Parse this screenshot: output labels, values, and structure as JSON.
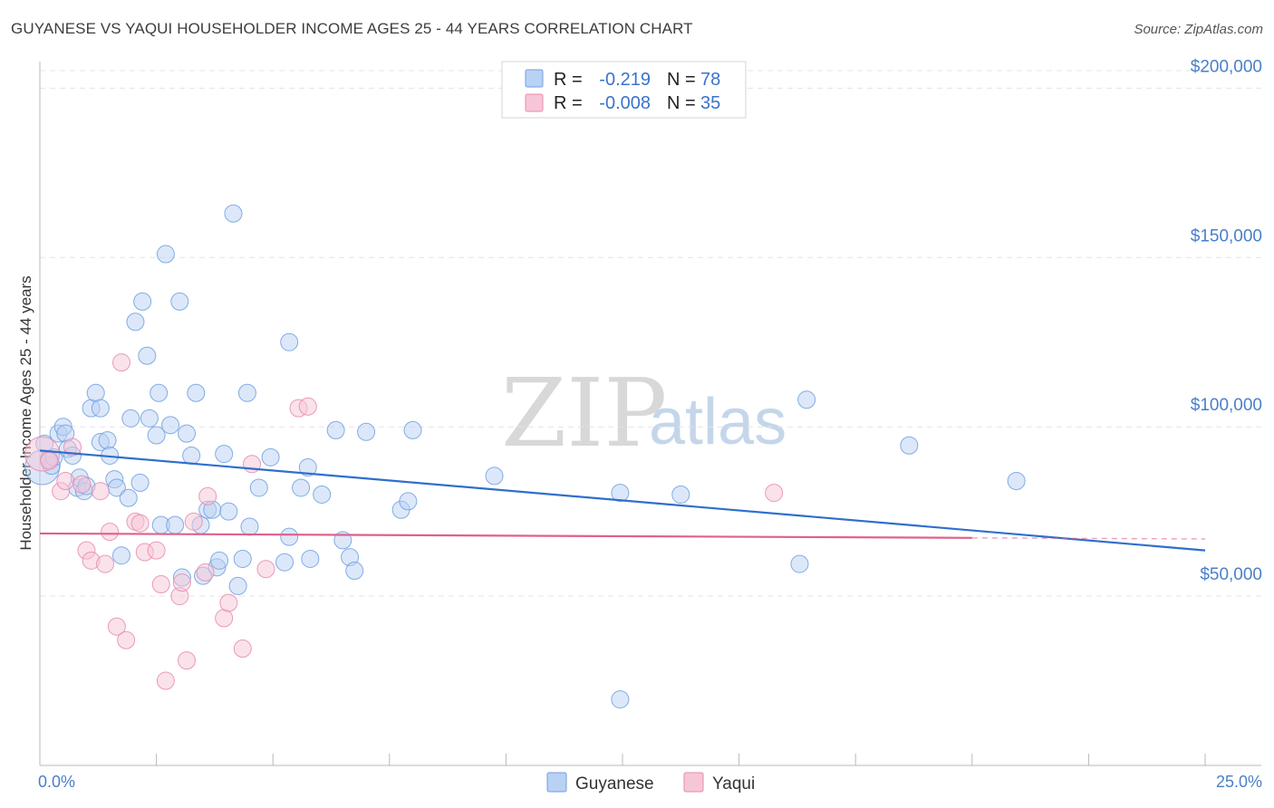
{
  "header": {
    "title": "GUYANESE VS YAQUI HOUSEHOLDER INCOME AGES 25 - 44 YEARS CORRELATION CHART",
    "source": "Source: ZipAtlas.com"
  },
  "watermark": {
    "part1": "ZIP",
    "part2": "atlas"
  },
  "colors": {
    "blue": "#6f9fe0",
    "blue_line": "#2f6fcc",
    "blue_fill": "#b9d1f3",
    "pink": "#e88aad",
    "pink_line": "#e0608a",
    "pink_fill": "#f6c6d7",
    "axis_label": "#4a7fc8",
    "grid": "#e4e4e4"
  },
  "legend": {
    "rows": [
      {
        "r_label": "R =",
        "r_value": "-0.219",
        "n_label": "N =",
        "n_value": "78",
        "color": "#b9d1f3",
        "stroke": "#6f9fe0"
      },
      {
        "r_label": "R =",
        "r_value": "-0.008",
        "n_label": "N =",
        "n_value": "35",
        "color": "#f6c6d7",
        "stroke": "#e88aad"
      }
    ]
  },
  "bottom_legend": [
    {
      "label": "Guyanese",
      "color": "#b9d1f3",
      "stroke": "#6f9fe0"
    },
    {
      "label": "Yaqui",
      "color": "#f6c6d7",
      "stroke": "#e88aad"
    }
  ],
  "chart_data": {
    "type": "scatter",
    "title": "GUYANESE VS YAQUI HOUSEHOLDER INCOME AGES 25 - 44 YEARS CORRELATION CHART",
    "xlabel": "",
    "ylabel": "Householder Income Ages 25 - 44 years",
    "xlim": [
      0,
      25
    ],
    "ylim": [
      0,
      210000
    ],
    "x_tick_labels": [
      "0.0%",
      "25.0%"
    ],
    "y_ticks": [
      50000,
      100000,
      150000,
      200000
    ],
    "y_tick_labels": [
      "$50,000",
      "$100,000",
      "$150,000",
      "$200,000"
    ],
    "grid": true,
    "series": [
      {
        "name": "Guyanese",
        "r": -0.219,
        "n": 78,
        "trend": {
          "x": [
            0,
            25
          ],
          "y": [
            93000,
            63500
          ]
        },
        "points": [
          {
            "x": 0.05,
            "y": 88000,
            "big": true
          },
          {
            "x": 0.1,
            "y": 95000
          },
          {
            "x": 0.2,
            "y": 90500
          },
          {
            "x": 0.25,
            "y": 88500
          },
          {
            "x": 0.3,
            "y": 91000
          },
          {
            "x": 0.4,
            "y": 98000
          },
          {
            "x": 0.5,
            "y": 100000
          },
          {
            "x": 0.55,
            "y": 98000
          },
          {
            "x": 0.6,
            "y": 93500
          },
          {
            "x": 0.7,
            "y": 91500
          },
          {
            "x": 0.8,
            "y": 82000
          },
          {
            "x": 0.85,
            "y": 85000
          },
          {
            "x": 0.95,
            "y": 81000
          },
          {
            "x": 1.0,
            "y": 82500
          },
          {
            "x": 1.1,
            "y": 105500
          },
          {
            "x": 1.2,
            "y": 110000
          },
          {
            "x": 1.3,
            "y": 105500
          },
          {
            "x": 1.3,
            "y": 95500
          },
          {
            "x": 1.45,
            "y": 96000
          },
          {
            "x": 1.5,
            "y": 91500
          },
          {
            "x": 1.6,
            "y": 84500
          },
          {
            "x": 1.65,
            "y": 82000
          },
          {
            "x": 1.75,
            "y": 62000
          },
          {
            "x": 1.9,
            "y": 79000
          },
          {
            "x": 1.95,
            "y": 102500
          },
          {
            "x": 2.05,
            "y": 131000
          },
          {
            "x": 2.15,
            "y": 83500
          },
          {
            "x": 2.2,
            "y": 137000
          },
          {
            "x": 2.3,
            "y": 121000
          },
          {
            "x": 2.35,
            "y": 102500
          },
          {
            "x": 2.5,
            "y": 97500
          },
          {
            "x": 2.55,
            "y": 110000
          },
          {
            "x": 2.6,
            "y": 71000
          },
          {
            "x": 2.7,
            "y": 151000
          },
          {
            "x": 2.8,
            "y": 100500
          },
          {
            "x": 2.9,
            "y": 71000
          },
          {
            "x": 3.0,
            "y": 137000
          },
          {
            "x": 3.05,
            "y": 55500
          },
          {
            "x": 3.15,
            "y": 98000
          },
          {
            "x": 3.25,
            "y": 91500
          },
          {
            "x": 3.35,
            "y": 110000
          },
          {
            "x": 3.45,
            "y": 71000
          },
          {
            "x": 3.5,
            "y": 56000
          },
          {
            "x": 3.6,
            "y": 75500
          },
          {
            "x": 3.7,
            "y": 75500
          },
          {
            "x": 3.8,
            "y": 58500
          },
          {
            "x": 3.85,
            "y": 60500
          },
          {
            "x": 3.95,
            "y": 92000
          },
          {
            "x": 4.05,
            "y": 75000
          },
          {
            "x": 4.15,
            "y": 163000
          },
          {
            "x": 4.25,
            "y": 53000
          },
          {
            "x": 4.35,
            "y": 61000
          },
          {
            "x": 4.45,
            "y": 110000
          },
          {
            "x": 4.5,
            "y": 70500
          },
          {
            "x": 4.7,
            "y": 82000
          },
          {
            "x": 4.95,
            "y": 91000
          },
          {
            "x": 5.25,
            "y": 60000
          },
          {
            "x": 5.35,
            "y": 67500
          },
          {
            "x": 5.35,
            "y": 125000
          },
          {
            "x": 5.6,
            "y": 82000
          },
          {
            "x": 5.75,
            "y": 88000
          },
          {
            "x": 5.8,
            "y": 61000
          },
          {
            "x": 6.05,
            "y": 80000
          },
          {
            "x": 6.35,
            "y": 99000
          },
          {
            "x": 6.5,
            "y": 66500
          },
          {
            "x": 6.65,
            "y": 61500
          },
          {
            "x": 6.75,
            "y": 57500
          },
          {
            "x": 7.0,
            "y": 98500
          },
          {
            "x": 7.75,
            "y": 75500
          },
          {
            "x": 7.9,
            "y": 78000
          },
          {
            "x": 8.0,
            "y": 99000
          },
          {
            "x": 9.75,
            "y": 85500
          },
          {
            "x": 12.45,
            "y": 19500
          },
          {
            "x": 12.45,
            "y": 80500
          },
          {
            "x": 13.75,
            "y": 80000
          },
          {
            "x": 16.3,
            "y": 59500
          },
          {
            "x": 16.45,
            "y": 108000
          },
          {
            "x": 18.65,
            "y": 94500
          },
          {
            "x": 20.95,
            "y": 84000
          }
        ]
      },
      {
        "name": "Yaqui",
        "r": -0.008,
        "n": 35,
        "trend": {
          "x": [
            0,
            20
          ],
          "y": [
            68500,
            67200
          ],
          "dashed_to": 25
        },
        "points": [
          {
            "x": 0.05,
            "y": 92000,
            "big": true
          },
          {
            "x": 0.2,
            "y": 90000
          },
          {
            "x": 0.45,
            "y": 81000
          },
          {
            "x": 0.55,
            "y": 84000
          },
          {
            "x": 0.7,
            "y": 94000
          },
          {
            "x": 0.9,
            "y": 83000
          },
          {
            "x": 1.0,
            "y": 63500
          },
          {
            "x": 1.1,
            "y": 60500
          },
          {
            "x": 1.3,
            "y": 81000
          },
          {
            "x": 1.4,
            "y": 59500
          },
          {
            "x": 1.5,
            "y": 69000
          },
          {
            "x": 1.65,
            "y": 41000
          },
          {
            "x": 1.75,
            "y": 119000
          },
          {
            "x": 1.85,
            "y": 37000
          },
          {
            "x": 2.05,
            "y": 72000
          },
          {
            "x": 2.15,
            "y": 71500
          },
          {
            "x": 2.25,
            "y": 63000
          },
          {
            "x": 2.5,
            "y": 63500
          },
          {
            "x": 2.6,
            "y": 53500
          },
          {
            "x": 2.7,
            "y": 25000
          },
          {
            "x": 3.0,
            "y": 50000
          },
          {
            "x": 3.05,
            "y": 54000
          },
          {
            "x": 3.15,
            "y": 31000
          },
          {
            "x": 3.3,
            "y": 72000
          },
          {
            "x": 3.55,
            "y": 57000
          },
          {
            "x": 3.6,
            "y": 79500
          },
          {
            "x": 3.95,
            "y": 43500
          },
          {
            "x": 4.05,
            "y": 48000
          },
          {
            "x": 4.35,
            "y": 34500
          },
          {
            "x": 4.55,
            "y": 89000
          },
          {
            "x": 4.85,
            "y": 58000
          },
          {
            "x": 5.55,
            "y": 105500
          },
          {
            "x": 5.75,
            "y": 106000
          },
          {
            "x": 15.75,
            "y": 80500
          }
        ]
      }
    ]
  }
}
